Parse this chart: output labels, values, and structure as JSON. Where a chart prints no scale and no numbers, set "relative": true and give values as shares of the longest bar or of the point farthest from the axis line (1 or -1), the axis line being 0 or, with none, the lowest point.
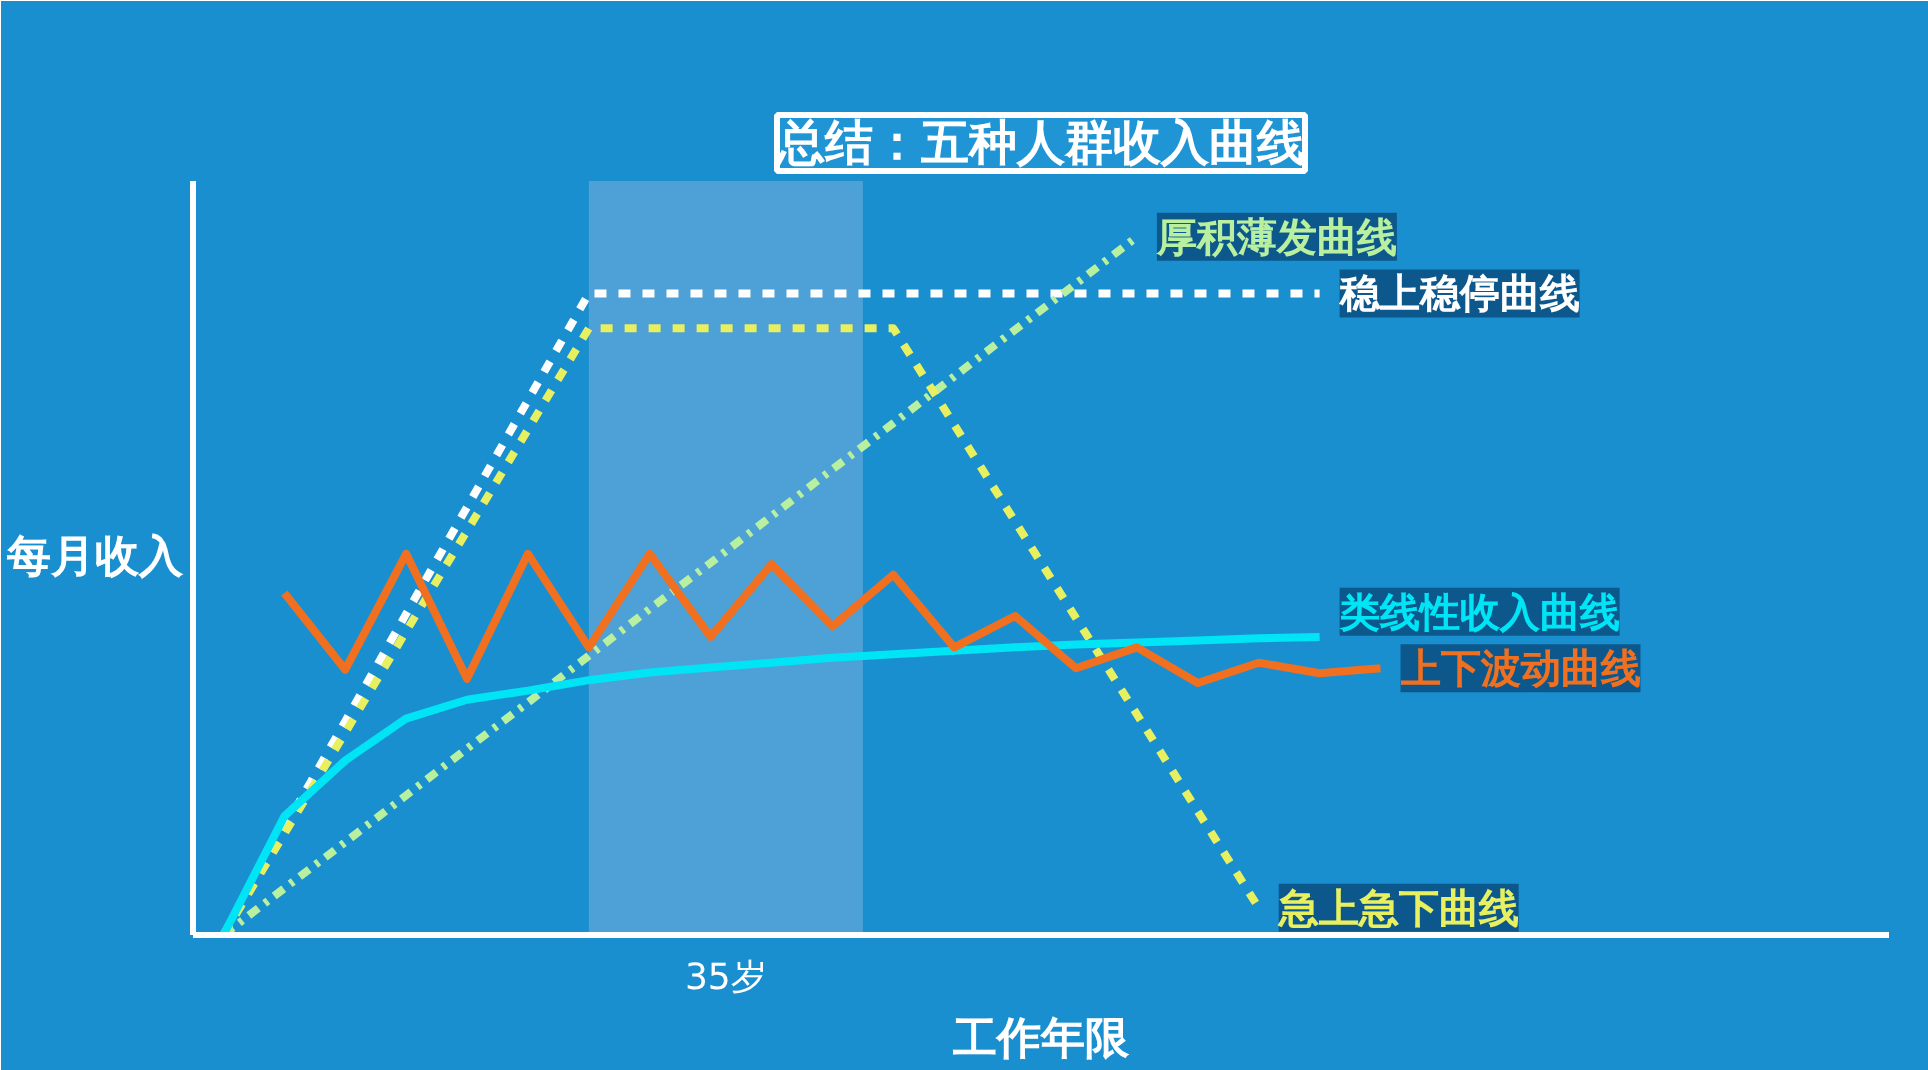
{
  "chart_data": {
    "type": "line",
    "title": "总结：五种人群收入曲线",
    "xlabel": "工作年限",
    "ylabel": "每月收入",
    "relative": true,
    "categories": [
      null,
      null,
      null,
      null,
      null,
      null,
      null,
      null,
      null,
      null,
      null,
      null,
      null,
      null,
      null,
      null,
      null,
      null,
      null,
      null,
      null
    ],
    "annotations": [
      "35岁"
    ],
    "series": [
      {
        "name": "稳上稳停曲线",
        "color": "#ffffff",
        "line_style": "dashed",
        "values": [
          0,
          0.153,
          0.306,
          0.46,
          0.613,
          0.766,
          0.919,
          0.919,
          0.919,
          0.919,
          0.919,
          0.919,
          0.919,
          0.919,
          0.919,
          0.919,
          0.919,
          0.919,
          0.919,
          null,
          null
        ]
      },
      {
        "name": "厚积薄发曲线",
        "color": "#b8f0a0",
        "line_style": "dashdot",
        "values": [
          0,
          0.067,
          0.133,
          0.2,
          0.267,
          0.333,
          0.4,
          0.467,
          0.533,
          0.6,
          0.667,
          0.733,
          0.8,
          0.867,
          0.933,
          1.0,
          null,
          null,
          null,
          null,
          null
        ]
      },
      {
        "name": "急上急下曲线",
        "color": "#e8f060",
        "line_style": "dashed",
        "values": [
          0,
          0.145,
          0.29,
          0.435,
          0.579,
          0.724,
          0.869,
          0.869,
          0.869,
          0.869,
          0.869,
          0.869,
          0.731,
          0.592,
          0.454,
          0.316,
          0.177,
          0.039,
          null,
          null,
          null
        ]
      },
      {
        "name": "类线性收入曲线",
        "color": "#00e5f5",
        "line_style": "solid",
        "values": [
          0,
          0.17,
          0.25,
          0.31,
          0.337,
          0.35,
          0.365,
          0.376,
          0.383,
          0.39,
          0.397,
          0.402,
          0.407,
          0.412,
          0.416,
          0.419,
          0.422,
          0.425,
          0.427,
          null,
          null
        ]
      },
      {
        "name": "上下波动曲线",
        "color": "#f07020",
        "line_style": "solid",
        "values": [
          null,
          0.49,
          0.38,
          0.546,
          0.367,
          0.546,
          0.412,
          0.546,
          0.427,
          0.531,
          0.442,
          0.516,
          0.412,
          0.457,
          0.382,
          0.412,
          0.361,
          0.39,
          0.375,
          0.382,
          null
        ]
      }
    ]
  }
}
